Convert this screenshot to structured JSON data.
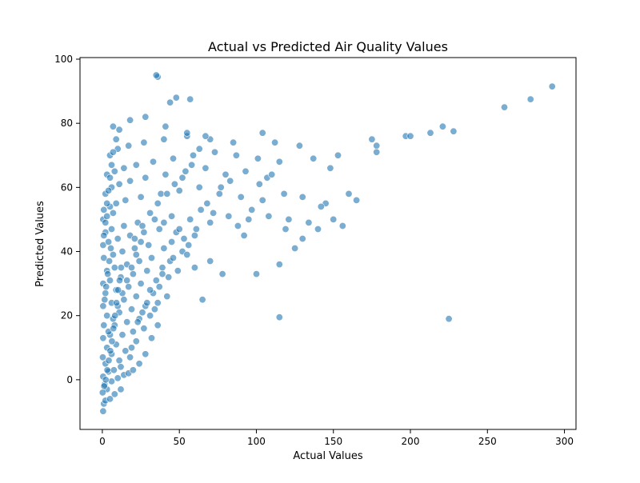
{
  "chart_data": {
    "type": "scatter",
    "title": "Actual vs Predicted Air Quality Values",
    "xlabel": "Actual Values",
    "ylabel": "Predicted Values",
    "xlim": [
      -14.5,
      307.5
    ],
    "ylim": [
      -15.5,
      100.5
    ],
    "xticks": [
      0,
      50,
      100,
      150,
      200,
      250,
      300
    ],
    "yticks": [
      0,
      20,
      40,
      60,
      80,
      100
    ],
    "grid": false,
    "legend": "none",
    "marker_color": "#1f77b4",
    "marker_opacity": 0.6,
    "series": [
      {
        "points": [
          [
            0.5,
            -9.8
          ],
          [
            1.0,
            -7.5
          ],
          [
            2.0,
            -6.5
          ],
          [
            5.0,
            -6.0
          ],
          [
            8.0,
            -4.5
          ],
          [
            3.0,
            -3.0
          ],
          [
            12.0,
            -3.0
          ],
          [
            1.5,
            -1.5
          ],
          [
            6.0,
            -0.5
          ],
          [
            10.0,
            0.5
          ],
          [
            0.5,
            1.0
          ],
          [
            4.0,
            2.5
          ],
          [
            7.5,
            3.0
          ],
          [
            14.0,
            1.5
          ],
          [
            2.0,
            5.0
          ],
          [
            17.0,
            2.0
          ],
          [
            0.3,
            7.0
          ],
          [
            6.0,
            8.0
          ],
          [
            11.0,
            6.0
          ],
          [
            18.0,
            7.0
          ],
          [
            3.0,
            10.0
          ],
          [
            9.0,
            11.0
          ],
          [
            15.0,
            9.0
          ],
          [
            22.0,
            12.0
          ],
          [
            0.5,
            13.0
          ],
          [
            5.0,
            14.0
          ],
          [
            13.0,
            14.0
          ],
          [
            20.0,
            15.0
          ],
          [
            27.0,
            16.0
          ],
          [
            1.0,
            17.0
          ],
          [
            8.0,
            17.0
          ],
          [
            16.0,
            18.0
          ],
          [
            24.0,
            19.0
          ],
          [
            31.0,
            20.0
          ],
          [
            3.0,
            20.0
          ],
          [
            11.0,
            21.0
          ],
          [
            19.0,
            22.0
          ],
          [
            28.0,
            23.0
          ],
          [
            36.0,
            24.0
          ],
          [
            0.5,
            23.0
          ],
          [
            6.0,
            24.0
          ],
          [
            14.0,
            25.0
          ],
          [
            22.0,
            26.0
          ],
          [
            33.0,
            27.0
          ],
          [
            42.0,
            26.0
          ],
          [
            2.0,
            27.0
          ],
          [
            9.0,
            28.0
          ],
          [
            17.0,
            29.0
          ],
          [
            25.0,
            30.0
          ],
          [
            35.0,
            31.0
          ],
          [
            0.5,
            30.0
          ],
          [
            5.0,
            31.0
          ],
          [
            12.0,
            32.0
          ],
          [
            20.0,
            33.0
          ],
          [
            29.0,
            34.0
          ],
          [
            39.0,
            33.0
          ],
          [
            3.0,
            34.0
          ],
          [
            8.0,
            35.0
          ],
          [
            16.0,
            36.0
          ],
          [
            24.0,
            37.0
          ],
          [
            32.0,
            38.0
          ],
          [
            44.0,
            37.0
          ],
          [
            1.0,
            38.0
          ],
          [
            7.0,
            39.0
          ],
          [
            13.0,
            40.0
          ],
          [
            21.0,
            41.0
          ],
          [
            30.0,
            42.0
          ],
          [
            40.0,
            41.0
          ],
          [
            52.0,
            40.0
          ],
          [
            0.5,
            42.0
          ],
          [
            4.0,
            43.0
          ],
          [
            10.0,
            44.0
          ],
          [
            18.0,
            45.0
          ],
          [
            27.0,
            46.0
          ],
          [
            37.0,
            47.0
          ],
          [
            48.0,
            46.0
          ],
          [
            60.0,
            45.0
          ],
          [
            2.0,
            46.0
          ],
          [
            6.0,
            47.0
          ],
          [
            14.0,
            48.0
          ],
          [
            23.0,
            49.0
          ],
          [
            34.0,
            50.0
          ],
          [
            45.0,
            51.0
          ],
          [
            57.0,
            50.0
          ],
          [
            70.0,
            49.0
          ],
          [
            82.0,
            51.0
          ],
          [
            95.0,
            50.0
          ],
          [
            108.0,
            51.0
          ],
          [
            121.0,
            50.0
          ],
          [
            0.5,
            50.0
          ],
          [
            3.0,
            51.0
          ],
          [
            7.0,
            52.0
          ],
          [
            1.0,
            53.0
          ],
          [
            5.0,
            54.0
          ],
          [
            9.0,
            55.0
          ],
          [
            15.0,
            56.0
          ],
          [
            25.0,
            57.0
          ],
          [
            38.0,
            58.0
          ],
          [
            50.0,
            59.0
          ],
          [
            63.0,
            60.0
          ],
          [
            76.0,
            58.0
          ],
          [
            90.0,
            57.0
          ],
          [
            104.0,
            56.0
          ],
          [
            118.0,
            58.0
          ],
          [
            130.0,
            57.0
          ],
          [
            145.0,
            55.0
          ],
          [
            160.0,
            58.0
          ],
          [
            2.0,
            58.0
          ],
          [
            6.0,
            60.0
          ],
          [
            11.0,
            61.0
          ],
          [
            18.0,
            62.0
          ],
          [
            28.0,
            63.0
          ],
          [
            41.0,
            64.0
          ],
          [
            54.0,
            65.0
          ],
          [
            67.0,
            66.0
          ],
          [
            80.0,
            64.0
          ],
          [
            93.0,
            65.0
          ],
          [
            107.0,
            63.0
          ],
          [
            3.0,
            64.0
          ],
          [
            8.0,
            65.0
          ],
          [
            14.0,
            66.0
          ],
          [
            22.0,
            67.0
          ],
          [
            33.0,
            68.0
          ],
          [
            46.0,
            69.0
          ],
          [
            59.0,
            70.0
          ],
          [
            73.0,
            71.0
          ],
          [
            87.0,
            70.0
          ],
          [
            101.0,
            69.0
          ],
          [
            115.0,
            68.0
          ],
          [
            137.0,
            69.0
          ],
          [
            153.0,
            70.0
          ],
          [
            5.0,
            70.0
          ],
          [
            10.0,
            72.0
          ],
          [
            17.0,
            73.0
          ],
          [
            27.0,
            74.0
          ],
          [
            40.0,
            75.0
          ],
          [
            55.0,
            76.0
          ],
          [
            70.0,
            75.0
          ],
          [
            85.0,
            74.0
          ],
          [
            112.0,
            74.0
          ],
          [
            128.0,
            73.0
          ],
          [
            175.0,
            75.0
          ],
          [
            178.0,
            73.0
          ],
          [
            197.0,
            76.0
          ],
          [
            213.0,
            77.0
          ],
          [
            221.0,
            79.0
          ],
          [
            228.0,
            77.5
          ],
          [
            7.0,
            79.0
          ],
          [
            18.0,
            81.0
          ],
          [
            28.0,
            82.0
          ],
          [
            41.0,
            79.0
          ],
          [
            55.0,
            77.0
          ],
          [
            104.0,
            77.0
          ],
          [
            57.0,
            87.5
          ],
          [
            48.0,
            88.0
          ],
          [
            44.0,
            86.5
          ],
          [
            36.0,
            94.5
          ],
          [
            35.0,
            95.0
          ],
          [
            261.0,
            85.0
          ],
          [
            278.0,
            87.5
          ],
          [
            292.0,
            91.5
          ],
          [
            115.0,
            19.5
          ],
          [
            225.0,
            19.0
          ],
          [
            65.0,
            25.0
          ],
          [
            70.0,
            37.0
          ],
          [
            78.0,
            33.0
          ],
          [
            100.0,
            33.0
          ],
          [
            115.0,
            36.0
          ],
          [
            130.0,
            44.0
          ],
          [
            140.0,
            47.0
          ],
          [
            150.0,
            50.0
          ],
          [
            165.0,
            56.0
          ],
          [
            178.0,
            71.0
          ],
          [
            200.0,
            76.0
          ],
          [
            12.0,
            4.0
          ],
          [
            19.0,
            10.0
          ],
          [
            23.0,
            18.0
          ],
          [
            26.0,
            21.0
          ],
          [
            29.0,
            24.0
          ],
          [
            31.0,
            28.0
          ],
          [
            34.0,
            22.0
          ],
          [
            37.0,
            29.0
          ],
          [
            39.0,
            35.0
          ],
          [
            43.0,
            32.0
          ],
          [
            46.0,
            38.0
          ],
          [
            49.0,
            34.0
          ],
          [
            53.0,
            44.0
          ],
          [
            56.0,
            42.0
          ],
          [
            61.0,
            47.0
          ],
          [
            64.0,
            53.0
          ],
          [
            68.0,
            55.0
          ],
          [
            72.0,
            52.0
          ],
          [
            77.0,
            60.0
          ],
          [
            83.0,
            62.0
          ],
          [
            88.0,
            48.0
          ],
          [
            92.0,
            45.0
          ],
          [
            97.0,
            53.0
          ],
          [
            102.0,
            61.0
          ],
          [
            110.0,
            64.0
          ],
          [
            119.0,
            47.0
          ],
          [
            125.0,
            41.0
          ],
          [
            134.0,
            49.0
          ],
          [
            142.0,
            54.0
          ],
          [
            148.0,
            66.0
          ],
          [
            156.0,
            48.0
          ],
          [
            4.0,
            15.0
          ],
          [
            7.0,
            19.0
          ],
          [
            10.0,
            23.0
          ],
          [
            13.0,
            27.0
          ],
          [
            16.0,
            31.0
          ],
          [
            19.0,
            35.0
          ],
          [
            22.0,
            39.0
          ],
          [
            25.0,
            43.0
          ],
          [
            1.5,
            25.0
          ],
          [
            2.5,
            29.0
          ],
          [
            3.5,
            33.0
          ],
          [
            4.5,
            37.0
          ],
          [
            5.5,
            41.0
          ],
          [
            1.0,
            45.0
          ],
          [
            2.0,
            49.0
          ],
          [
            3.0,
            55.0
          ],
          [
            4.0,
            59.0
          ],
          [
            5.0,
            63.0
          ],
          [
            6.0,
            67.0
          ],
          [
            7.0,
            71.0
          ],
          [
            9.0,
            75.0
          ],
          [
            11.0,
            78.0
          ],
          [
            0.2,
            -4.0
          ],
          [
            1.2,
            -2.0
          ],
          [
            2.2,
            0.0
          ],
          [
            3.2,
            3.0
          ],
          [
            4.2,
            6.0
          ],
          [
            5.2,
            9.0
          ],
          [
            6.2,
            12.0
          ],
          [
            7.2,
            16.0
          ],
          [
            8.2,
            20.0
          ],
          [
            9.2,
            24.0
          ],
          [
            10.2,
            28.0
          ],
          [
            11.2,
            31.0
          ],
          [
            12.2,
            35.0
          ],
          [
            20.0,
            3.0
          ],
          [
            24.0,
            5.0
          ],
          [
            28.0,
            8.0
          ],
          [
            32.0,
            13.0
          ],
          [
            36.0,
            17.0
          ],
          [
            21.0,
            44.0
          ],
          [
            26.0,
            48.0
          ],
          [
            31.0,
            52.0
          ],
          [
            36.0,
            55.0
          ],
          [
            42.0,
            58.0
          ],
          [
            47.0,
            61.0
          ],
          [
            52.0,
            63.0
          ],
          [
            58.0,
            67.0
          ],
          [
            63.0,
            72.0
          ],
          [
            67.0,
            76.0
          ],
          [
            40.0,
            49.0
          ],
          [
            45.0,
            43.0
          ],
          [
            50.0,
            47.0
          ],
          [
            55.0,
            39.0
          ],
          [
            60.0,
            35.0
          ]
        ]
      }
    ]
  }
}
